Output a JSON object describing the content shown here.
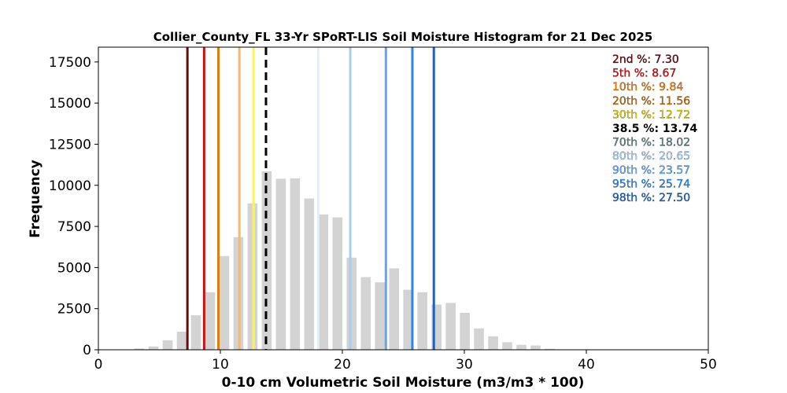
{
  "chart_data": {
    "type": "bar",
    "title": "Collier_County_FL 33-Yr SPoRT-LIS Soil Moisture Histogram for 21 Dec 2025",
    "xlabel": "0-10 cm Volumetric Soil Moisture (m3/m3 * 100)",
    "ylabel": "Frequency",
    "xlim": [
      0,
      50
    ],
    "ylim": [
      0,
      18400
    ],
    "xticks": [
      0,
      10,
      20,
      30,
      40,
      50
    ],
    "yticks": [
      0,
      2500,
      5000,
      7500,
      10000,
      12500,
      15000,
      17500
    ],
    "bin_width": 1.16,
    "bar_color": "#d3d3d3",
    "bins": [
      {
        "x": 2.2,
        "value": 20
      },
      {
        "x": 3.36,
        "value": 80
      },
      {
        "x": 4.52,
        "value": 200
      },
      {
        "x": 5.68,
        "value": 580
      },
      {
        "x": 6.84,
        "value": 1100
      },
      {
        "x": 8.0,
        "value": 2100
      },
      {
        "x": 9.16,
        "value": 3500
      },
      {
        "x": 10.32,
        "value": 5700
      },
      {
        "x": 11.48,
        "value": 6850
      },
      {
        "x": 12.64,
        "value": 8900
      },
      {
        "x": 13.8,
        "value": 10850
      },
      {
        "x": 14.96,
        "value": 10400
      },
      {
        "x": 16.12,
        "value": 10420
      },
      {
        "x": 17.28,
        "value": 9200
      },
      {
        "x": 18.44,
        "value": 8230
      },
      {
        "x": 19.6,
        "value": 8050
      },
      {
        "x": 20.76,
        "value": 5600
      },
      {
        "x": 21.92,
        "value": 4420
      },
      {
        "x": 23.08,
        "value": 4100
      },
      {
        "x": 24.24,
        "value": 4950
      },
      {
        "x": 25.4,
        "value": 3650
      },
      {
        "x": 26.56,
        "value": 3500
      },
      {
        "x": 27.72,
        "value": 2750
      },
      {
        "x": 28.88,
        "value": 2850
      },
      {
        "x": 30.04,
        "value": 2250
      },
      {
        "x": 31.2,
        "value": 1300
      },
      {
        "x": 32.36,
        "value": 820
      },
      {
        "x": 33.52,
        "value": 460
      },
      {
        "x": 34.68,
        "value": 300
      },
      {
        "x": 35.84,
        "value": 260
      },
      {
        "x": 37.0,
        "value": 60
      }
    ],
    "percentiles": [
      {
        "label": "2nd %: 7.30",
        "value": 7.3,
        "color": "#6b0a0a",
        "style": "solid"
      },
      {
        "label": "5th %: 8.67",
        "value": 8.67,
        "color": "#cc1111",
        "style": "solid"
      },
      {
        "label": "10th %: 9.84",
        "value": 9.84,
        "color": "#e07b10",
        "style": "solid"
      },
      {
        "label": "20th %: 11.56",
        "value": 11.56,
        "color": "#fbb768",
        "style": "solid"
      },
      {
        "label": "30th %: 12.72",
        "value": 12.72,
        "color": "#fff34d",
        "style": "solid"
      },
      {
        "label": "38.5 %: 13.74",
        "value": 13.74,
        "color": "#000000",
        "style": "dashed"
      },
      {
        "label": "70th %: 18.02",
        "value": 18.02,
        "color": "#dff2f7",
        "style": "solid"
      },
      {
        "label": "80th %: 20.65",
        "value": 20.65,
        "color": "#a7cdf0",
        "style": "solid"
      },
      {
        "label": "90th %: 23.57",
        "value": 23.57,
        "color": "#62a7ee",
        "style": "solid"
      },
      {
        "label": "95th %: 25.74",
        "value": 25.74,
        "color": "#2d86e3",
        "style": "solid"
      },
      {
        "label": "98th %: 27.50",
        "value": 27.5,
        "color": "#1f62c3",
        "style": "solid"
      }
    ],
    "grid": false,
    "legend": "top-right"
  }
}
